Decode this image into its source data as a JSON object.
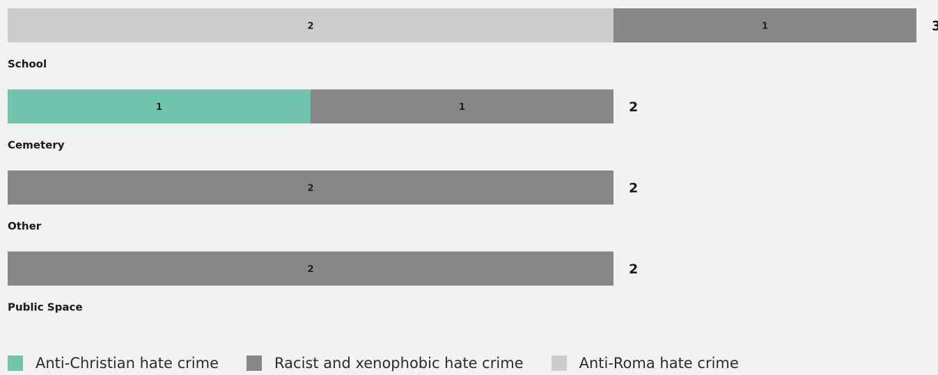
{
  "chart_data": {
    "type": "bar",
    "orientation": "horizontal",
    "stacked": true,
    "categories": [
      "School",
      "Cemetery",
      "Other",
      "Public Space"
    ],
    "series": [
      {
        "name": "Anti-Christian hate crime",
        "color": "#70c4ac",
        "values": [
          0,
          1,
          0,
          0
        ]
      },
      {
        "name": "Racist and xenophobic hate crime",
        "color": "#878787",
        "values": [
          1,
          1,
          2,
          2
        ]
      },
      {
        "name": "Anti-Roma hate crime",
        "color": "#cbcecd",
        "values": [
          2,
          0,
          0,
          0
        ]
      }
    ],
    "segment_order": [
      [
        2,
        1
      ],
      [
        0,
        1
      ],
      [
        1
      ],
      [
        1
      ]
    ],
    "totals": [
      3,
      2,
      2,
      2
    ],
    "xlim": [
      0,
      3
    ],
    "grid": false,
    "legend_position": "bottom-left"
  }
}
